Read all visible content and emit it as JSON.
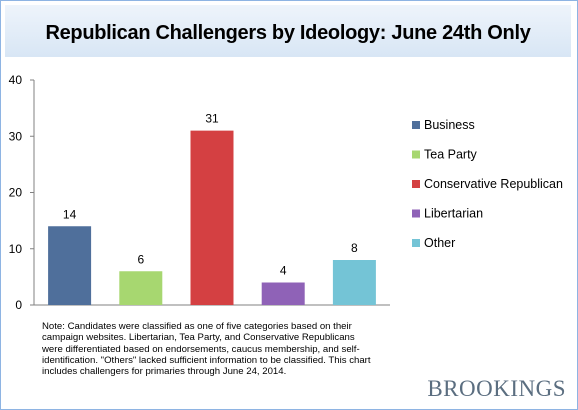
{
  "chart_data": {
    "type": "bar",
    "title": "Republican Challengers by Ideology: June 24th Only",
    "categories": [
      "Business",
      "Tea Party",
      "Conservative Republican",
      "Libertarian",
      "Other"
    ],
    "values": [
      14,
      6,
      31,
      4,
      8
    ],
    "colors": [
      "#4f6f9b",
      "#a7d770",
      "#d44042",
      "#8f62b7",
      "#74c4d6"
    ],
    "ylim": [
      0,
      40
    ],
    "yticks": [
      0,
      10,
      20,
      30,
      40
    ],
    "legend_position": "right",
    "grid": false,
    "note": "Note: Candidates were classified as one of five categories based on their campaign websites. Libertarian, Tea Party, and Conservative Republicans were differentiated based on endorsements, caucus membership, and self-identification. \"Others\" lacked sufficient information to be classified.  This chart includes challengers for primaries through June 24, 2014."
  },
  "brand": "BROOKINGS"
}
